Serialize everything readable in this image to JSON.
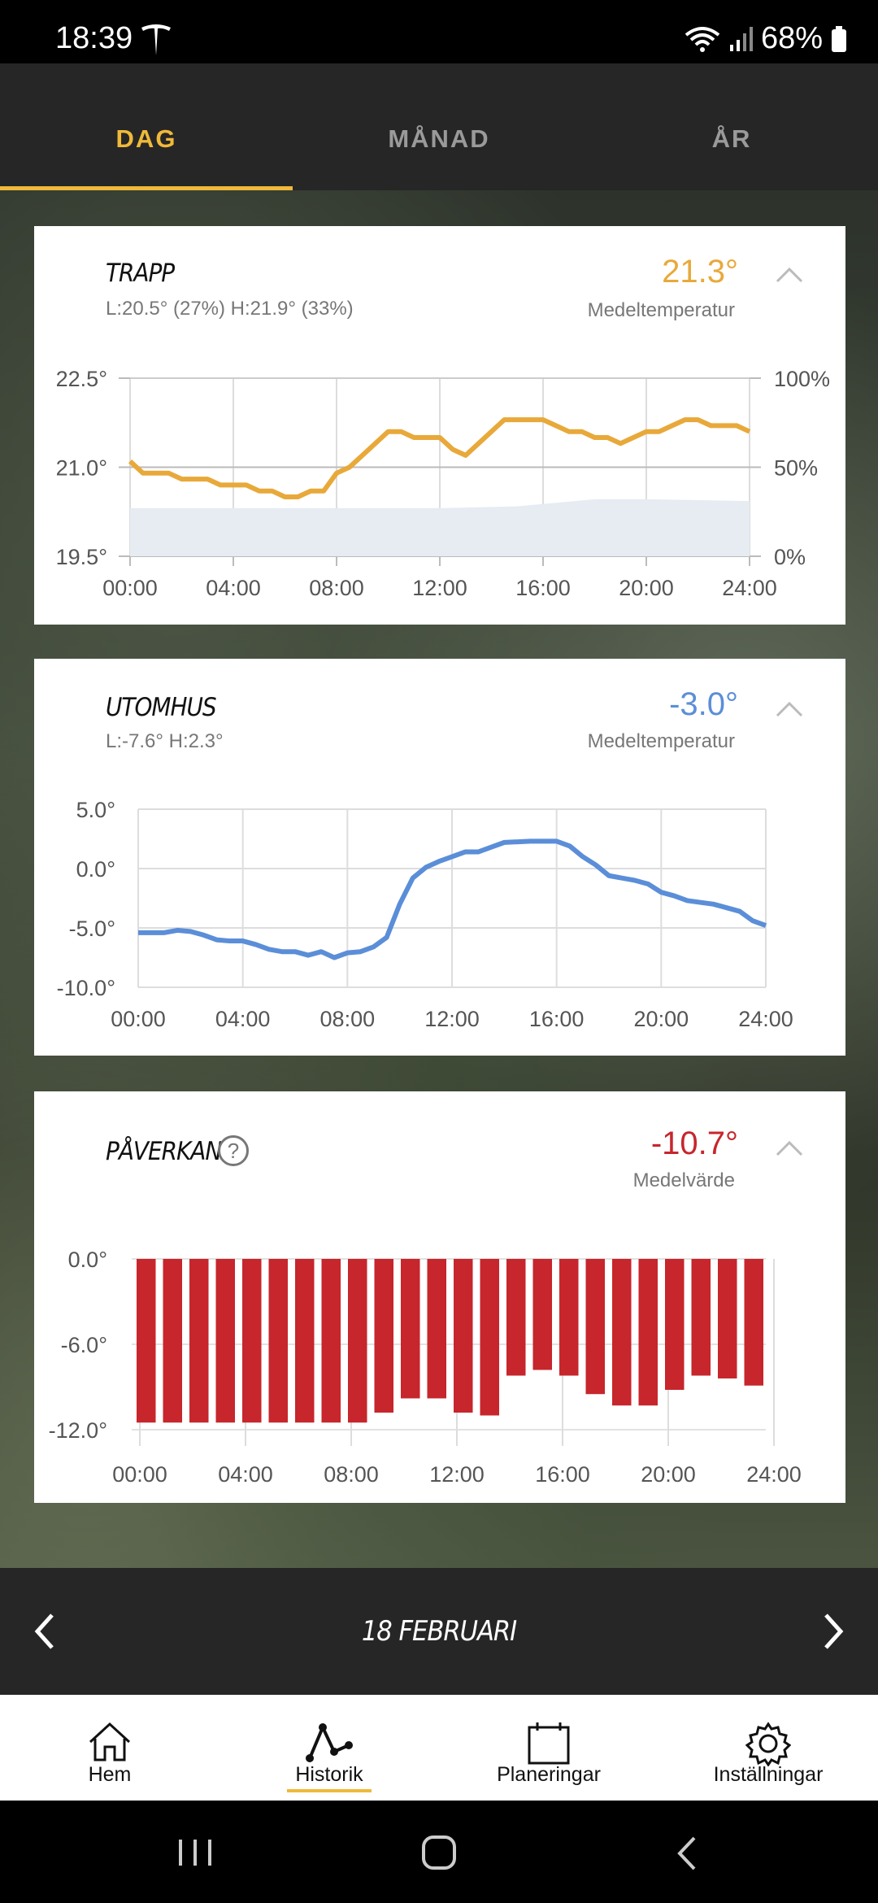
{
  "status": {
    "time": "18:39",
    "battery": "68%"
  },
  "tabs": [
    "DAG",
    "MÅNAD",
    "ÅR"
  ],
  "trapp": {
    "title": "TRAPP",
    "sub": "L:20.5° (27%)    H:21.9° (33%)",
    "value": "21.3°",
    "value_label": "Medeltemperatur",
    "color": "#e8a93a"
  },
  "utomhus": {
    "title": "UTOMHUS",
    "sub": "L:-7.6° H:2.3°",
    "value": "-3.0°",
    "value_label": "Medeltemperatur",
    "color": "#5b8ed8"
  },
  "paverkan": {
    "title": "PÅVERKAN",
    "help": "?",
    "value": "-10.7°",
    "value_label": "Medelvärde",
    "color": "#c6262c"
  },
  "date": "18 FEBRUARI",
  "nav": [
    {
      "label": "Hem",
      "icon": "home-icon"
    },
    {
      "label": "Historik",
      "icon": "history-graph-icon"
    },
    {
      "label": "Planeringar",
      "icon": "calendar-icon"
    },
    {
      "label": "Inställningar",
      "icon": "gear-icon"
    }
  ],
  "chart_data": [
    {
      "type": "line",
      "title": "TRAPP",
      "x_ticks": [
        "00:00",
        "04:00",
        "08:00",
        "12:00",
        "16:00",
        "20:00",
        "24:00"
      ],
      "y_ticks": [
        "19.5°",
        "21.0°",
        "22.5°"
      ],
      "y2_ticks": [
        "0%",
        "50%",
        "100%"
      ],
      "ylim": [
        19.5,
        22.5
      ],
      "y2lim": [
        0,
        100
      ],
      "xlim": [
        0,
        24
      ],
      "series": [
        {
          "kind": "temperature",
          "x": [
            0,
            0.5,
            1,
            1.5,
            2,
            2.5,
            3,
            3.5,
            4,
            4.5,
            5,
            5.5,
            6,
            6.5,
            7,
            7.5,
            8,
            8.5,
            9,
            9.5,
            10,
            10.5,
            11,
            11.5,
            12,
            12.5,
            13,
            13.5,
            14,
            14.5,
            15,
            15.5,
            16,
            16.5,
            17,
            17.5,
            18,
            18.5,
            19,
            19.5,
            20,
            20.5,
            21,
            21.5,
            22,
            22.5,
            23,
            23.5,
            24
          ],
          "values": [
            21.1,
            20.9,
            20.9,
            20.9,
            20.8,
            20.8,
            20.8,
            20.7,
            20.7,
            20.7,
            20.6,
            20.6,
            20.5,
            20.5,
            20.6,
            20.6,
            20.9,
            21.0,
            21.2,
            21.4,
            21.6,
            21.6,
            21.5,
            21.5,
            21.5,
            21.3,
            21.2,
            21.4,
            21.6,
            21.8,
            21.8,
            21.8,
            21.8,
            21.7,
            21.6,
            21.6,
            21.5,
            21.5,
            21.4,
            21.5,
            21.6,
            21.6,
            21.7,
            21.8,
            21.8,
            21.7,
            21.7,
            21.7,
            21.6
          ]
        },
        {
          "kind": "humidity",
          "x": [
            0,
            4,
            8,
            12,
            15,
            18,
            20,
            24
          ],
          "values": [
            27,
            27,
            27,
            27,
            28,
            32,
            32,
            31
          ]
        }
      ]
    },
    {
      "type": "line",
      "title": "UTOMHUS",
      "x_ticks": [
        "00:00",
        "04:00",
        "08:00",
        "12:00",
        "16:00",
        "20:00",
        "24:00"
      ],
      "y_ticks": [
        "-10.0°",
        "-5.0°",
        "0.0°",
        "5.0°"
      ],
      "ylim": [
        -10,
        5
      ],
      "xlim": [
        0,
        24
      ],
      "series": [
        {
          "x": [
            0,
            1,
            1.5,
            2,
            2.5,
            3,
            3.5,
            4,
            4.5,
            5,
            5.5,
            6,
            6.5,
            7,
            7.5,
            8,
            8.5,
            9,
            9.5,
            10,
            10.5,
            11,
            11.5,
            12,
            12.5,
            13,
            13.5,
            14,
            15,
            16,
            16.5,
            17,
            17.5,
            18,
            19,
            19.5,
            20,
            20.5,
            21,
            22,
            22.5,
            23,
            23.5,
            24
          ],
          "values": [
            -5.4,
            -5.4,
            -5.2,
            -5.3,
            -5.6,
            -6.0,
            -6.1,
            -6.1,
            -6.4,
            -6.8,
            -7.0,
            -7.0,
            -7.3,
            -7.0,
            -7.5,
            -7.1,
            -7.0,
            -6.6,
            -5.8,
            -3.0,
            -0.8,
            0.1,
            0.6,
            1.0,
            1.4,
            1.4,
            1.8,
            2.2,
            2.3,
            2.3,
            1.9,
            1.0,
            0.3,
            -0.6,
            -1.0,
            -1.3,
            -2.0,
            -2.3,
            -2.7,
            -3.0,
            -3.3,
            -3.6,
            -4.4,
            -4.8
          ]
        }
      ]
    },
    {
      "type": "bar",
      "title": "PÅVERKAN",
      "x_ticks": [
        "00:00",
        "04:00",
        "08:00",
        "12:00",
        "16:00",
        "20:00",
        "24:00"
      ],
      "y_ticks": [
        "-12.0°",
        "-6.0°",
        "0.0°"
      ],
      "ylim": [
        -12,
        0
      ],
      "values": [
        -11.5,
        -11.5,
        -11.5,
        -11.5,
        -11.5,
        -11.5,
        -11.5,
        -11.5,
        -11.5,
        -10.8,
        -9.8,
        -9.8,
        -10.8,
        -11.0,
        -8.2,
        -7.8,
        -8.2,
        -9.5,
        -10.3,
        -10.3,
        -9.2,
        -8.2,
        -8.4,
        -8.9
      ]
    }
  ]
}
